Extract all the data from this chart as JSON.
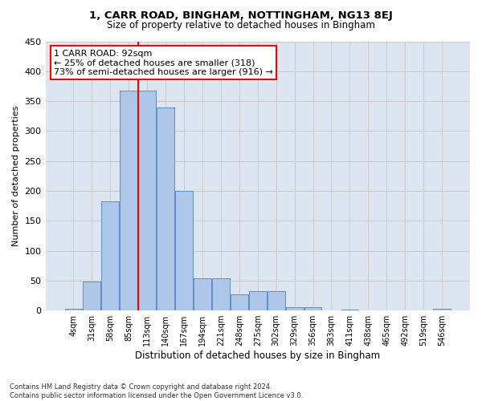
{
  "title1": "1, CARR ROAD, BINGHAM, NOTTINGHAM, NG13 8EJ",
  "title2": "Size of property relative to detached houses in Bingham",
  "xlabel": "Distribution of detached houses by size in Bingham",
  "ylabel": "Number of detached properties",
  "bar_labels": [
    "4sqm",
    "31sqm",
    "58sqm",
    "85sqm",
    "113sqm",
    "140sqm",
    "167sqm",
    "194sqm",
    "221sqm",
    "248sqm",
    "275sqm",
    "302sqm",
    "329sqm",
    "356sqm",
    "383sqm",
    "411sqm",
    "438sqm",
    "465sqm",
    "492sqm",
    "519sqm",
    "546sqm"
  ],
  "bar_values": [
    3,
    48,
    182,
    368,
    368,
    339,
    200,
    54,
    54,
    27,
    32,
    32,
    6,
    6,
    0,
    2,
    0,
    0,
    0,
    0,
    3
  ],
  "bar_color": "#aec6e8",
  "bar_edge_color": "#5b8fc9",
  "vline_color": "red",
  "vline_x": 3.5,
  "annotation_text": "1 CARR ROAD: 92sqm\n← 25% of detached houses are smaller (318)\n73% of semi-detached houses are larger (916) →",
  "annotation_box_color": "white",
  "annotation_box_edge_color": "red",
  "ylim_max": 450,
  "yticks": [
    0,
    50,
    100,
    150,
    200,
    250,
    300,
    350,
    400,
    450
  ],
  "grid_color": "#cccccc",
  "bg_color": "#dde6f0",
  "footnote": "Contains HM Land Registry data © Crown copyright and database right 2024.\nContains public sector information licensed under the Open Government Licence v3.0."
}
